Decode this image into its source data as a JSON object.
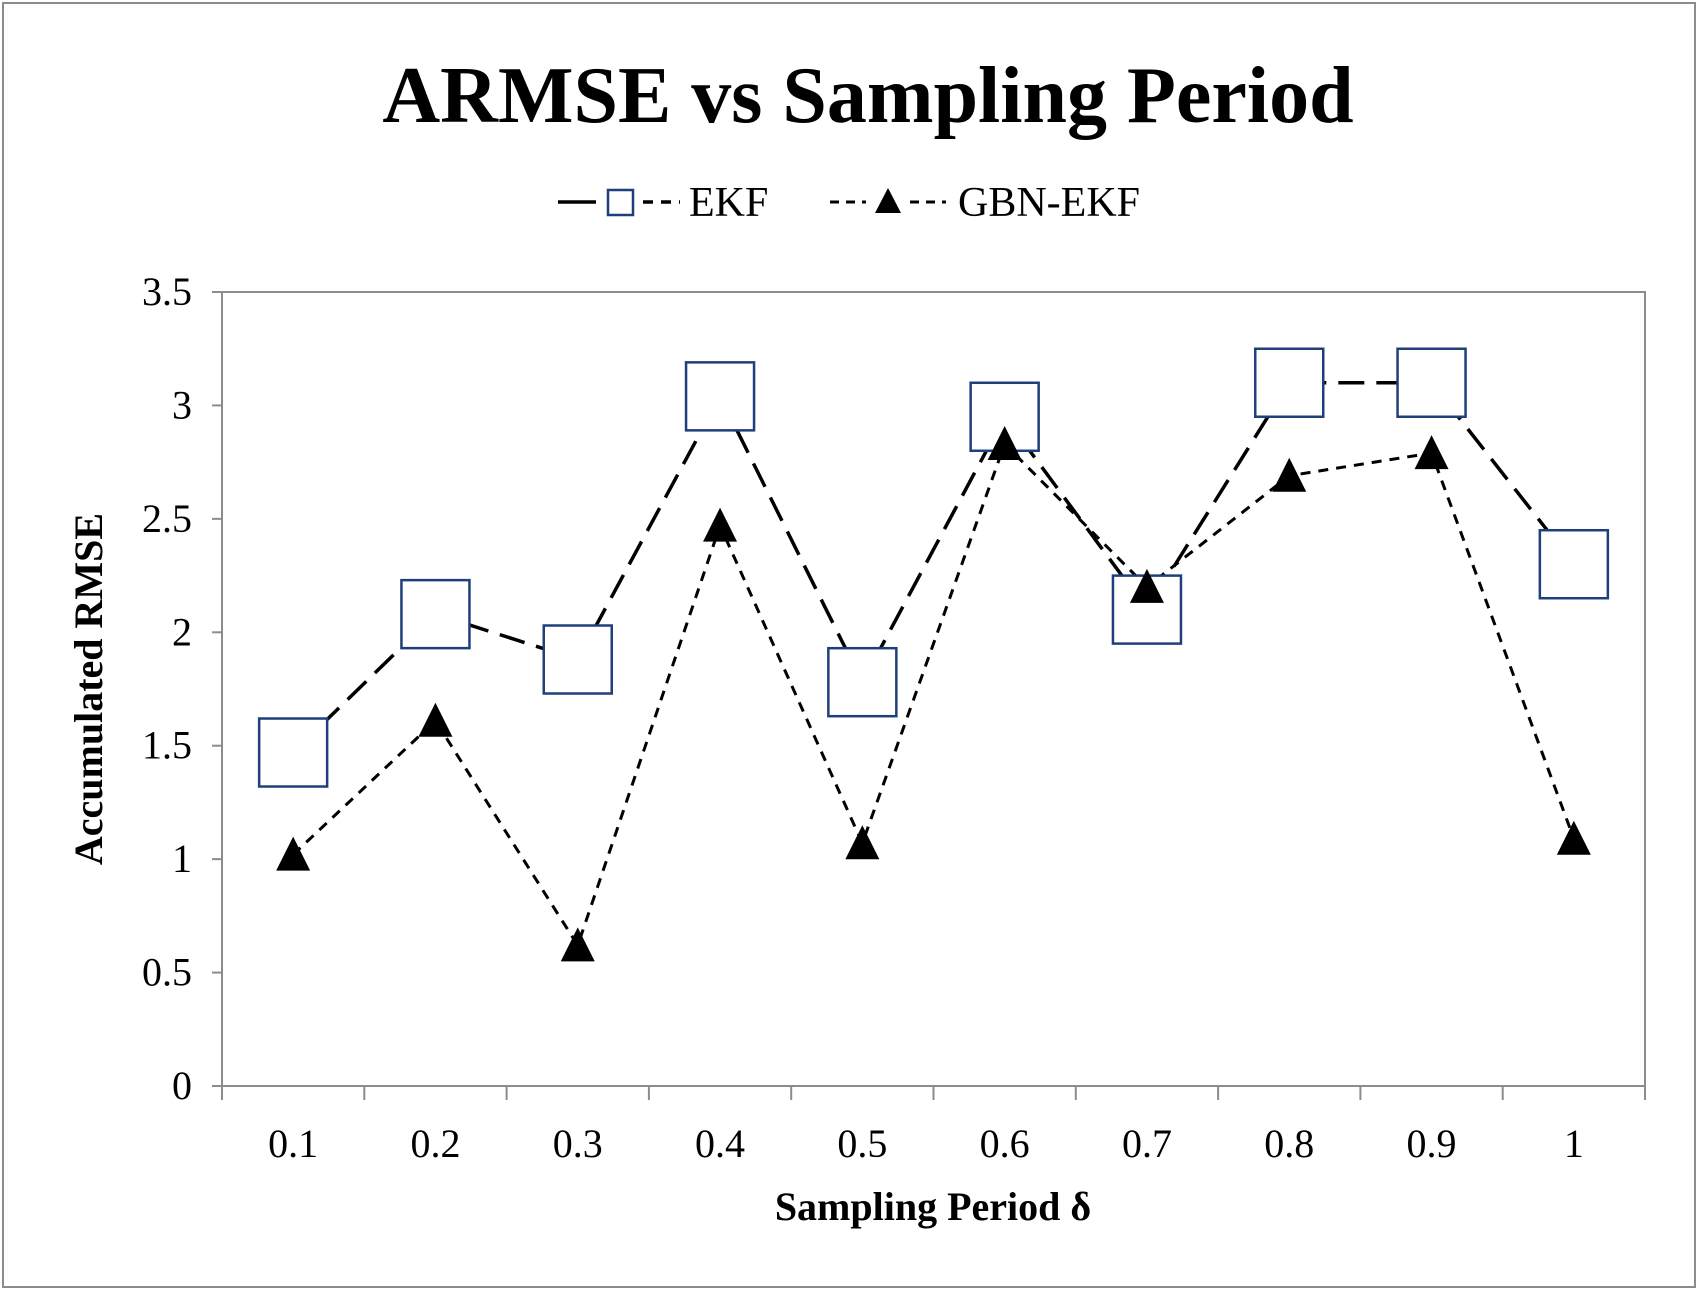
{
  "chart_data": {
    "type": "line",
    "title": "ARMSE vs Sampling Period",
    "xlabel": "Sampling Period δ",
    "ylabel": "Accumulated RMSE",
    "categories": [
      "0.1",
      "0.2",
      "0.3",
      "0.4",
      "0.5",
      "0.6",
      "0.7",
      "0.8",
      "0.9",
      "1"
    ],
    "ylim": [
      0,
      3.5
    ],
    "yticks": [
      "0",
      "0.5",
      "1",
      "1.5",
      "2",
      "2.5",
      "3",
      "3.5"
    ],
    "ytick_values": [
      0,
      0.5,
      1,
      1.5,
      2,
      2.5,
      3,
      3.5
    ],
    "grid": false,
    "legend_position": "top-center",
    "series": [
      {
        "name": "EKF",
        "values": [
          1.47,
          2.08,
          1.88,
          3.04,
          1.78,
          2.95,
          2.1,
          3.1,
          3.1,
          2.3
        ],
        "marker": "square",
        "line_style": "long-dash",
        "color": "#1f3f7a"
      },
      {
        "name": "GBN-EKF",
        "values": [
          1.02,
          1.61,
          0.62,
          2.47,
          1.07,
          2.83,
          2.2,
          2.69,
          2.79,
          1.09
        ],
        "marker": "triangle",
        "line_style": "short-dash",
        "color": "#000000"
      }
    ]
  }
}
